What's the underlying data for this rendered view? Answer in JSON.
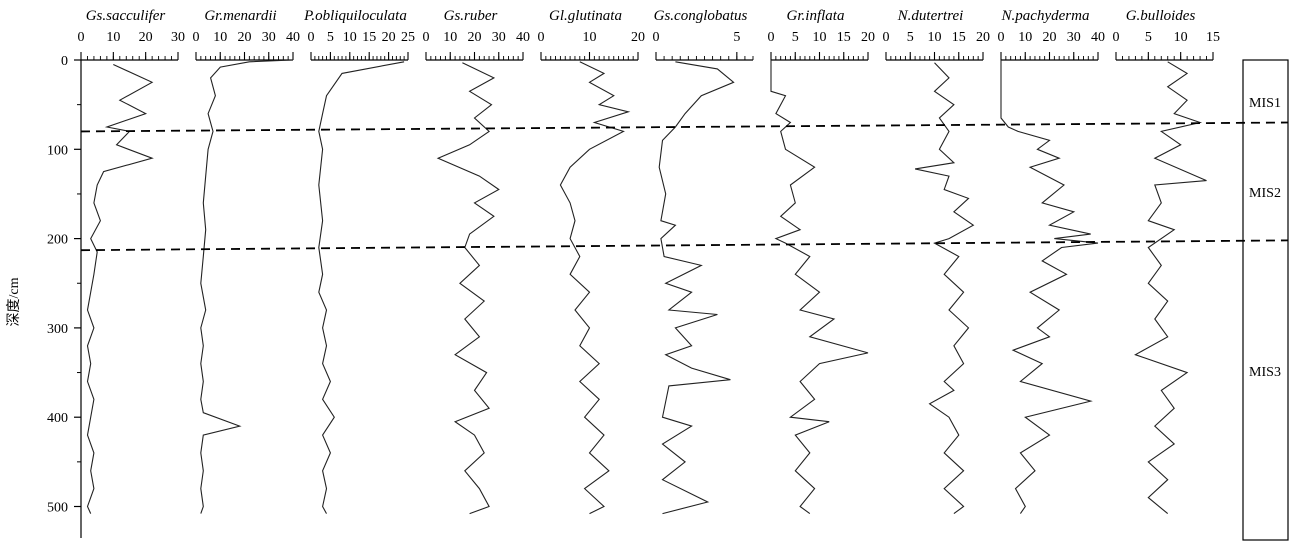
{
  "chart_data": {
    "type": "line",
    "ylabel": "深度/cm",
    "ylim": [
      0,
      510
    ],
    "yticks": [
      0,
      100,
      200,
      300,
      400,
      500
    ],
    "grid": false,
    "boundaries": [
      {
        "left_depth": 80,
        "right_depth": 70
      },
      {
        "left_depth": 213,
        "right_depth": 202
      }
    ],
    "zones": [
      {
        "label": "MIS1",
        "depth": 47
      },
      {
        "label": "MIS2",
        "depth": 148
      },
      {
        "label": "MIS3",
        "depth": 348
      }
    ],
    "series": [
      {
        "name": "Gs.sacculifer",
        "xlim": [
          0,
          30
        ],
        "xticks": [
          0,
          10,
          20,
          30
        ],
        "points": [
          [
            10,
            5
          ],
          [
            22,
            25
          ],
          [
            12,
            45
          ],
          [
            20,
            60
          ],
          [
            8,
            75
          ],
          [
            15,
            80
          ],
          [
            11,
            95
          ],
          [
            22,
            110
          ],
          [
            7,
            125
          ],
          [
            5,
            140
          ],
          [
            4,
            160
          ],
          [
            6,
            180
          ],
          [
            3,
            200
          ],
          [
            5,
            215
          ],
          [
            4,
            240
          ],
          [
            3,
            260
          ],
          [
            2,
            280
          ],
          [
            4,
            300
          ],
          [
            2,
            320
          ],
          [
            3,
            340
          ],
          [
            2,
            360
          ],
          [
            4,
            380
          ],
          [
            3,
            400
          ],
          [
            2,
            420
          ],
          [
            4,
            440
          ],
          [
            3,
            460
          ],
          [
            4,
            480
          ],
          [
            2,
            500
          ],
          [
            3,
            508
          ]
        ]
      },
      {
        "name": "Gr.menardii",
        "xlim": [
          0,
          40
        ],
        "xticks": [
          0,
          10,
          20,
          30,
          40
        ],
        "points": [
          [
            40,
            0
          ],
          [
            22,
            2
          ],
          [
            10,
            8
          ],
          [
            6,
            20
          ],
          [
            8,
            40
          ],
          [
            5,
            60
          ],
          [
            7,
            80
          ],
          [
            5,
            100
          ],
          [
            4,
            130
          ],
          [
            3,
            160
          ],
          [
            4,
            190
          ],
          [
            3,
            220
          ],
          [
            2,
            250
          ],
          [
            4,
            280
          ],
          [
            2,
            300
          ],
          [
            3,
            320
          ],
          [
            2,
            340
          ],
          [
            3,
            360
          ],
          [
            2,
            380
          ],
          [
            3,
            395
          ],
          [
            18,
            410
          ],
          [
            3,
            420
          ],
          [
            2,
            440
          ],
          [
            3,
            460
          ],
          [
            2,
            480
          ],
          [
            3,
            500
          ],
          [
            2,
            508
          ]
        ]
      },
      {
        "name": "P.obliquiloculata",
        "xlim": [
          0,
          25
        ],
        "xticks": [
          0,
          5,
          10,
          15,
          20,
          25
        ],
        "points": [
          [
            24,
            2
          ],
          [
            8,
            15
          ],
          [
            4,
            40
          ],
          [
            3,
            60
          ],
          [
            2,
            80
          ],
          [
            3,
            100
          ],
          [
            2,
            140
          ],
          [
            3,
            180
          ],
          [
            2,
            210
          ],
          [
            3,
            240
          ],
          [
            2,
            260
          ],
          [
            4,
            280
          ],
          [
            3,
            300
          ],
          [
            4,
            320
          ],
          [
            3,
            340
          ],
          [
            5,
            360
          ],
          [
            3,
            380
          ],
          [
            6,
            400
          ],
          [
            3,
            420
          ],
          [
            5,
            440
          ],
          [
            3,
            460
          ],
          [
            4,
            480
          ],
          [
            3,
            500
          ],
          [
            4,
            508
          ]
        ]
      },
      {
        "name": "Gs.ruber",
        "xlim": [
          0,
          40
        ],
        "xticks": [
          0,
          10,
          20,
          30,
          40
        ],
        "points": [
          [
            15,
            3
          ],
          [
            28,
            20
          ],
          [
            18,
            35
          ],
          [
            27,
            50
          ],
          [
            20,
            65
          ],
          [
            26,
            80
          ],
          [
            18,
            95
          ],
          [
            5,
            110
          ],
          [
            22,
            130
          ],
          [
            30,
            145
          ],
          [
            20,
            160
          ],
          [
            28,
            175
          ],
          [
            18,
            195
          ],
          [
            16,
            210
          ],
          [
            22,
            230
          ],
          [
            14,
            250
          ],
          [
            24,
            270
          ],
          [
            16,
            290
          ],
          [
            22,
            310
          ],
          [
            12,
            330
          ],
          [
            25,
            350
          ],
          [
            20,
            370
          ],
          [
            26,
            390
          ],
          [
            12,
            405
          ],
          [
            20,
            420
          ],
          [
            24,
            440
          ],
          [
            16,
            460
          ],
          [
            22,
            480
          ],
          [
            26,
            500
          ],
          [
            18,
            508
          ]
        ]
      },
      {
        "name": "Gl.glutinata",
        "xlim": [
          0,
          20
        ],
        "xticks": [
          0,
          10,
          20
        ],
        "points": [
          [
            8,
            2
          ],
          [
            13,
            15
          ],
          [
            10,
            25
          ],
          [
            15,
            40
          ],
          [
            12,
            50
          ],
          [
            18,
            58
          ],
          [
            11,
            70
          ],
          [
            17,
            80
          ],
          [
            10,
            100
          ],
          [
            6,
            120
          ],
          [
            4,
            140
          ],
          [
            6,
            160
          ],
          [
            7,
            180
          ],
          [
            6,
            200
          ],
          [
            8,
            220
          ],
          [
            6,
            240
          ],
          [
            10,
            260
          ],
          [
            7,
            280
          ],
          [
            10,
            300
          ],
          [
            8,
            320
          ],
          [
            12,
            340
          ],
          [
            8,
            360
          ],
          [
            12,
            380
          ],
          [
            9,
            400
          ],
          [
            13,
            420
          ],
          [
            10,
            440
          ],
          [
            14,
            460
          ],
          [
            9,
            480
          ],
          [
            13,
            500
          ],
          [
            10,
            508
          ]
        ]
      },
      {
        "name": "Gs.conglobatus",
        "xlim": [
          0,
          6
        ],
        "xticks": [
          0,
          5
        ],
        "points": [
          [
            1.2,
            2
          ],
          [
            3.8,
            10
          ],
          [
            4.8,
            25
          ],
          [
            2.8,
            40
          ],
          [
            1.8,
            60
          ],
          [
            1.2,
            75
          ],
          [
            0.4,
            90
          ],
          [
            0.2,
            120
          ],
          [
            0.6,
            150
          ],
          [
            0.3,
            180
          ],
          [
            1.2,
            185
          ],
          [
            0.3,
            200
          ],
          [
            0.5,
            220
          ],
          [
            2.8,
            230
          ],
          [
            0.6,
            250
          ],
          [
            2.2,
            260
          ],
          [
            0.8,
            280
          ],
          [
            3.8,
            285
          ],
          [
            1.2,
            300
          ],
          [
            2.2,
            320
          ],
          [
            0.6,
            330
          ],
          [
            2.2,
            345
          ],
          [
            4.6,
            358
          ],
          [
            0.8,
            365
          ],
          [
            0.4,
            400
          ],
          [
            2.2,
            410
          ],
          [
            0.4,
            430
          ],
          [
            1.8,
            450
          ],
          [
            0.4,
            470
          ],
          [
            3.2,
            495
          ],
          [
            0.4,
            508
          ]
        ]
      },
      {
        "name": "Gr.inflata",
        "xlim": [
          0,
          20
        ],
        "xticks": [
          0,
          5,
          10,
          15,
          20
        ],
        "points": [
          [
            0,
            0
          ],
          [
            0,
            35
          ],
          [
            3,
            40
          ],
          [
            1,
            60
          ],
          [
            4,
            70
          ],
          [
            2,
            80
          ],
          [
            3,
            100
          ],
          [
            9,
            120
          ],
          [
            4,
            140
          ],
          [
            5,
            160
          ],
          [
            2,
            175
          ],
          [
            6,
            190
          ],
          [
            1,
            200
          ],
          [
            3,
            205
          ],
          [
            8,
            220
          ],
          [
            5,
            240
          ],
          [
            10,
            260
          ],
          [
            6,
            280
          ],
          [
            13,
            290
          ],
          [
            8,
            310
          ],
          [
            20,
            328
          ],
          [
            10,
            340
          ],
          [
            6,
            360
          ],
          [
            9,
            380
          ],
          [
            4,
            400
          ],
          [
            12,
            405
          ],
          [
            5,
            420
          ],
          [
            8,
            440
          ],
          [
            5,
            460
          ],
          [
            9,
            480
          ],
          [
            6,
            500
          ],
          [
            8,
            508
          ]
        ]
      },
      {
        "name": "N.dutertrei",
        "xlim": [
          0,
          20
        ],
        "xticks": [
          0,
          5,
          10,
          15,
          20
        ],
        "points": [
          [
            10,
            3
          ],
          [
            13,
            20
          ],
          [
            10,
            35
          ],
          [
            14,
            50
          ],
          [
            11,
            65
          ],
          [
            13,
            80
          ],
          [
            11,
            100
          ],
          [
            14,
            115
          ],
          [
            6,
            122
          ],
          [
            13,
            130
          ],
          [
            12,
            145
          ],
          [
            17,
            155
          ],
          [
            14,
            170
          ],
          [
            18,
            185
          ],
          [
            13,
            200
          ],
          [
            10,
            205
          ],
          [
            15,
            220
          ],
          [
            12,
            240
          ],
          [
            16,
            260
          ],
          [
            13,
            280
          ],
          [
            17,
            300
          ],
          [
            14,
            320
          ],
          [
            16,
            340
          ],
          [
            12,
            360
          ],
          [
            14,
            370
          ],
          [
            9,
            385
          ],
          [
            13,
            400
          ],
          [
            15,
            420
          ],
          [
            12,
            440
          ],
          [
            16,
            460
          ],
          [
            12,
            480
          ],
          [
            16,
            500
          ],
          [
            14,
            508
          ]
        ]
      },
      {
        "name": "N.pachyderma",
        "xlim": [
          0,
          40
        ],
        "xticks": [
          0,
          10,
          20,
          30,
          40
        ],
        "points": [
          [
            0,
            0
          ],
          [
            0,
            65
          ],
          [
            3,
            75
          ],
          [
            7,
            80
          ],
          [
            20,
            90
          ],
          [
            15,
            100
          ],
          [
            24,
            110
          ],
          [
            12,
            120
          ],
          [
            26,
            140
          ],
          [
            17,
            160
          ],
          [
            30,
            170
          ],
          [
            20,
            185
          ],
          [
            37,
            195
          ],
          [
            22,
            200
          ],
          [
            40,
            205
          ],
          [
            25,
            210
          ],
          [
            17,
            225
          ],
          [
            27,
            240
          ],
          [
            12,
            260
          ],
          [
            24,
            280
          ],
          [
            15,
            300
          ],
          [
            20,
            310
          ],
          [
            5,
            325
          ],
          [
            17,
            340
          ],
          [
            8,
            360
          ],
          [
            37,
            382
          ],
          [
            10,
            400
          ],
          [
            20,
            420
          ],
          [
            8,
            440
          ],
          [
            14,
            460
          ],
          [
            6,
            480
          ],
          [
            10,
            500
          ],
          [
            8,
            508
          ]
        ]
      },
      {
        "name": "G.bulloides",
        "xlim": [
          0,
          15
        ],
        "xticks": [
          0,
          5,
          10,
          15
        ],
        "points": [
          [
            8,
            2
          ],
          [
            11,
            15
          ],
          [
            8,
            30
          ],
          [
            11,
            45
          ],
          [
            9,
            60
          ],
          [
            13,
            70
          ],
          [
            7,
            80
          ],
          [
            10,
            95
          ],
          [
            6,
            110
          ],
          [
            14,
            135
          ],
          [
            6,
            140
          ],
          [
            7,
            160
          ],
          [
            5,
            180
          ],
          [
            9,
            190
          ],
          [
            5,
            210
          ],
          [
            7,
            230
          ],
          [
            5,
            250
          ],
          [
            8,
            270
          ],
          [
            6,
            290
          ],
          [
            8,
            310
          ],
          [
            3,
            330
          ],
          [
            11,
            350
          ],
          [
            7,
            370
          ],
          [
            9,
            390
          ],
          [
            6,
            410
          ],
          [
            9,
            430
          ],
          [
            5,
            450
          ],
          [
            8,
            470
          ],
          [
            5,
            490
          ],
          [
            8,
            508
          ]
        ]
      }
    ]
  }
}
